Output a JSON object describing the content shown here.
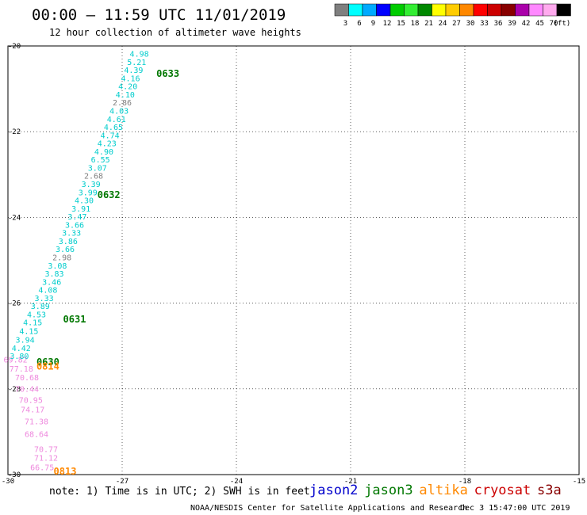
{
  "header": {
    "title": "00:00 – 11:59 UTC 11/01/2019",
    "subtitle": "12 hour collection of altimeter wave heights"
  },
  "legend": {
    "colors": [
      "#7f7f7f",
      "#00ffff",
      "#00aaff",
      "#0000ff",
      "#00cc00",
      "#33ee33",
      "#008800",
      "#ffff00",
      "#ffcc00",
      "#ff8800",
      "#ff0000",
      "#cc0000",
      "#880000",
      "#aa00aa",
      "#ff88ff",
      "#ffaaee",
      "#000000"
    ],
    "labels": [
      "3",
      "6",
      "9",
      "12",
      "15",
      "18",
      "21",
      "24",
      "27",
      "30",
      "33",
      "36",
      "39",
      "42",
      "45",
      "70",
      "(ft)"
    ]
  },
  "chart_data": {
    "type": "scatter",
    "x_ticks": [
      "-30",
      "-27",
      "-24",
      "-21",
      "-18",
      "-15"
    ],
    "y_ticks": [
      "-20",
      "-22",
      "-24",
      "-26",
      "-28",
      "-30"
    ],
    "xlim": [
      -30,
      -15
    ],
    "ylim": [
      -30,
      -20
    ],
    "grid": true,
    "points": [
      {
        "lon": -29.1,
        "lat": -29.9,
        "value": "66.75",
        "color": "#ee88dd"
      },
      {
        "lon": -29.0,
        "lat": -29.68,
        "value": "71.12",
        "color": "#ee88dd"
      },
      {
        "lon": -29.0,
        "lat": -29.47,
        "value": "70.77",
        "color": "#ee88dd"
      },
      {
        "lon": -29.25,
        "lat": -29.12,
        "value": "68.64",
        "color": "#ee88dd"
      },
      {
        "lon": -29.25,
        "lat": -28.83,
        "value": "71.38",
        "color": "#ee88dd"
      },
      {
        "lon": -29.35,
        "lat": -28.55,
        "value": "74.17",
        "color": "#ee88dd"
      },
      {
        "lon": -29.4,
        "lat": -28.33,
        "value": "70.95",
        "color": "#ee88dd"
      },
      {
        "lon": -29.5,
        "lat": -28.07,
        "value": "70.44",
        "color": "#ee88dd"
      },
      {
        "lon": -29.5,
        "lat": -27.8,
        "value": "70.68",
        "color": "#ee88dd"
      },
      {
        "lon": -29.65,
        "lat": -27.6,
        "value": "77.18",
        "color": "#ee88dd"
      },
      {
        "lon": -29.8,
        "lat": -27.38,
        "value": "69.82",
        "color": "#ee88dd"
      },
      {
        "lon": -29.7,
        "lat": -27.3,
        "value": "3.80",
        "color": "#00cccc"
      },
      {
        "lon": -29.65,
        "lat": -27.12,
        "value": "4.42",
        "color": "#00cccc"
      },
      {
        "lon": -29.55,
        "lat": -26.92,
        "value": "3.94",
        "color": "#00cccc"
      },
      {
        "lon": -29.45,
        "lat": -26.72,
        "value": "4.15",
        "color": "#00cccc"
      },
      {
        "lon": -29.35,
        "lat": -26.52,
        "value": "4.15",
        "color": "#00cccc"
      },
      {
        "lon": -29.25,
        "lat": -26.33,
        "value": "4.53",
        "color": "#00cccc"
      },
      {
        "lon": -29.15,
        "lat": -26.14,
        "value": "3.89",
        "color": "#00cccc"
      },
      {
        "lon": -29.05,
        "lat": -25.95,
        "value": "3.33",
        "color": "#00cccc"
      },
      {
        "lon": -28.95,
        "lat": -25.76,
        "value": "4.08",
        "color": "#00cccc"
      },
      {
        "lon": -28.85,
        "lat": -25.57,
        "value": "3.46",
        "color": "#00cccc"
      },
      {
        "lon": -28.78,
        "lat": -25.38,
        "value": "3.83",
        "color": "#00cccc"
      },
      {
        "lon": -28.7,
        "lat": -25.19,
        "value": "3.08",
        "color": "#00cccc"
      },
      {
        "lon": -28.58,
        "lat": -25.0,
        "value": "2.98",
        "color": "#7f7f7f"
      },
      {
        "lon": -28.5,
        "lat": -24.81,
        "value": "3.66",
        "color": "#00cccc"
      },
      {
        "lon": -28.42,
        "lat": -24.62,
        "value": "3.86",
        "color": "#00cccc"
      },
      {
        "lon": -28.33,
        "lat": -24.43,
        "value": "3.33",
        "color": "#00cccc"
      },
      {
        "lon": -28.25,
        "lat": -24.24,
        "value": "3.66",
        "color": "#00cccc"
      },
      {
        "lon": -28.18,
        "lat": -24.05,
        "value": "3.47",
        "color": "#00cccc"
      },
      {
        "lon": -28.08,
        "lat": -23.86,
        "value": "3.91",
        "color": "#00cccc"
      },
      {
        "lon": -28.0,
        "lat": -23.67,
        "value": "4.30",
        "color": "#00cccc"
      },
      {
        "lon": -27.9,
        "lat": -23.48,
        "value": "3.99",
        "color": "#00cccc"
      },
      {
        "lon": -27.82,
        "lat": -23.29,
        "value": "3.39",
        "color": "#00cccc"
      },
      {
        "lon": -27.75,
        "lat": -23.1,
        "value": "2.68",
        "color": "#7f7f7f"
      },
      {
        "lon": -27.65,
        "lat": -22.91,
        "value": "3.07",
        "color": "#00cccc"
      },
      {
        "lon": -27.57,
        "lat": -22.72,
        "value": "6.55",
        "color": "#00cccc"
      },
      {
        "lon": -27.48,
        "lat": -22.53,
        "value": "4.90",
        "color": "#00cccc"
      },
      {
        "lon": -27.4,
        "lat": -22.34,
        "value": "4.23",
        "color": "#00cccc"
      },
      {
        "lon": -27.32,
        "lat": -22.15,
        "value": "4.74",
        "color": "#00cccc"
      },
      {
        "lon": -27.23,
        "lat": -21.96,
        "value": "4.65",
        "color": "#00cccc"
      },
      {
        "lon": -27.15,
        "lat": -21.77,
        "value": "4.61",
        "color": "#00cccc"
      },
      {
        "lon": -27.08,
        "lat": -21.58,
        "value": "4.03",
        "color": "#00cccc"
      },
      {
        "lon": -27.0,
        "lat": -21.39,
        "value": "2.86",
        "color": "#7f7f7f"
      },
      {
        "lon": -26.92,
        "lat": -21.2,
        "value": "4.10",
        "color": "#00cccc"
      },
      {
        "lon": -26.85,
        "lat": -21.01,
        "value": "4.20",
        "color": "#00cccc"
      },
      {
        "lon": -26.78,
        "lat": -20.82,
        "value": "4.16",
        "color": "#00cccc"
      },
      {
        "lon": -26.7,
        "lat": -20.63,
        "value": "4.39",
        "color": "#00cccc"
      },
      {
        "lon": -26.62,
        "lat": -20.44,
        "value": "5.21",
        "color": "#00cccc"
      },
      {
        "lon": -26.55,
        "lat": -20.25,
        "value": "4.98",
        "color": "#00cccc"
      }
    ],
    "passes": [
      {
        "lon": -25.8,
        "lat": -20.72,
        "label": "0633",
        "color": "#007700"
      },
      {
        "lon": -27.35,
        "lat": -23.55,
        "label": "0632",
        "color": "#007700"
      },
      {
        "lon": -28.25,
        "lat": -26.45,
        "label": "0631",
        "color": "#007700"
      },
      {
        "lon": -28.95,
        "lat": -27.45,
        "label": "0630",
        "color": "#007700"
      },
      {
        "lon": -28.95,
        "lat": -27.55,
        "label": "0814",
        "color": "#ff8800"
      },
      {
        "lon": -28.5,
        "lat": -30.0,
        "label": "0813",
        "color": "#ff8800"
      }
    ]
  },
  "footer": {
    "note": "note: 1) Time is in UTC; 2) SWH is in feet",
    "satellites": [
      {
        "name": "jason2",
        "color": "#0000cc"
      },
      {
        "name": "jason3",
        "color": "#007700"
      },
      {
        "name": "altika",
        "color": "#ff8800"
      },
      {
        "name": "cryosat",
        "color": "#cc0000"
      },
      {
        "name": "s3a",
        "color": "#880000"
      }
    ],
    "credit": "NOAA/NESDIS Center for Satellite Applications and Research",
    "timestamp": "Dec  3 15:47:00 UTC 2019"
  }
}
